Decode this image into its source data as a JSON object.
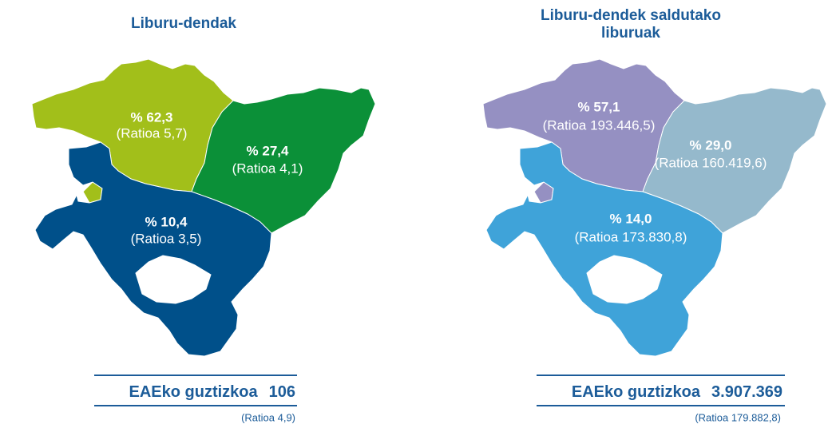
{
  "maps": [
    {
      "title": [
        "Liburu-dendak"
      ],
      "regions": [
        {
          "label": "% 62,3",
          "ratio": "(Ratioa 5,7)",
          "color": "#a2bf1a"
        },
        {
          "label": "% 27,4",
          "ratio": "(Ratioa 4,1)",
          "color": "#0b9038"
        },
        {
          "label": "% 10,4",
          "ratio": "(Ratioa 3,5)",
          "color": "#00508a"
        }
      ],
      "total": {
        "label": "EAEko guztizkoa",
        "value": "106",
        "ratio": "(Ratioa 4,9)"
      }
    },
    {
      "title": [
        "Liburu-dendek saldutako",
        "liburuak"
      ],
      "regions": [
        {
          "label": "% 57,1",
          "ratio": "(Ratioa 193.446,5)",
          "color": "#9590c2"
        },
        {
          "label": "% 29,0",
          "ratio": "(Ratioa 160.419,6)",
          "color": "#95b9cc"
        },
        {
          "label": "% 14,0",
          "ratio": "(Ratioa 173.830,8)",
          "color": "#3fa3d9"
        }
      ],
      "total": {
        "label": "EAEko guztizkoa",
        "value": "3.907.369",
        "ratio": "(Ratioa 179.882,8)"
      }
    }
  ]
}
